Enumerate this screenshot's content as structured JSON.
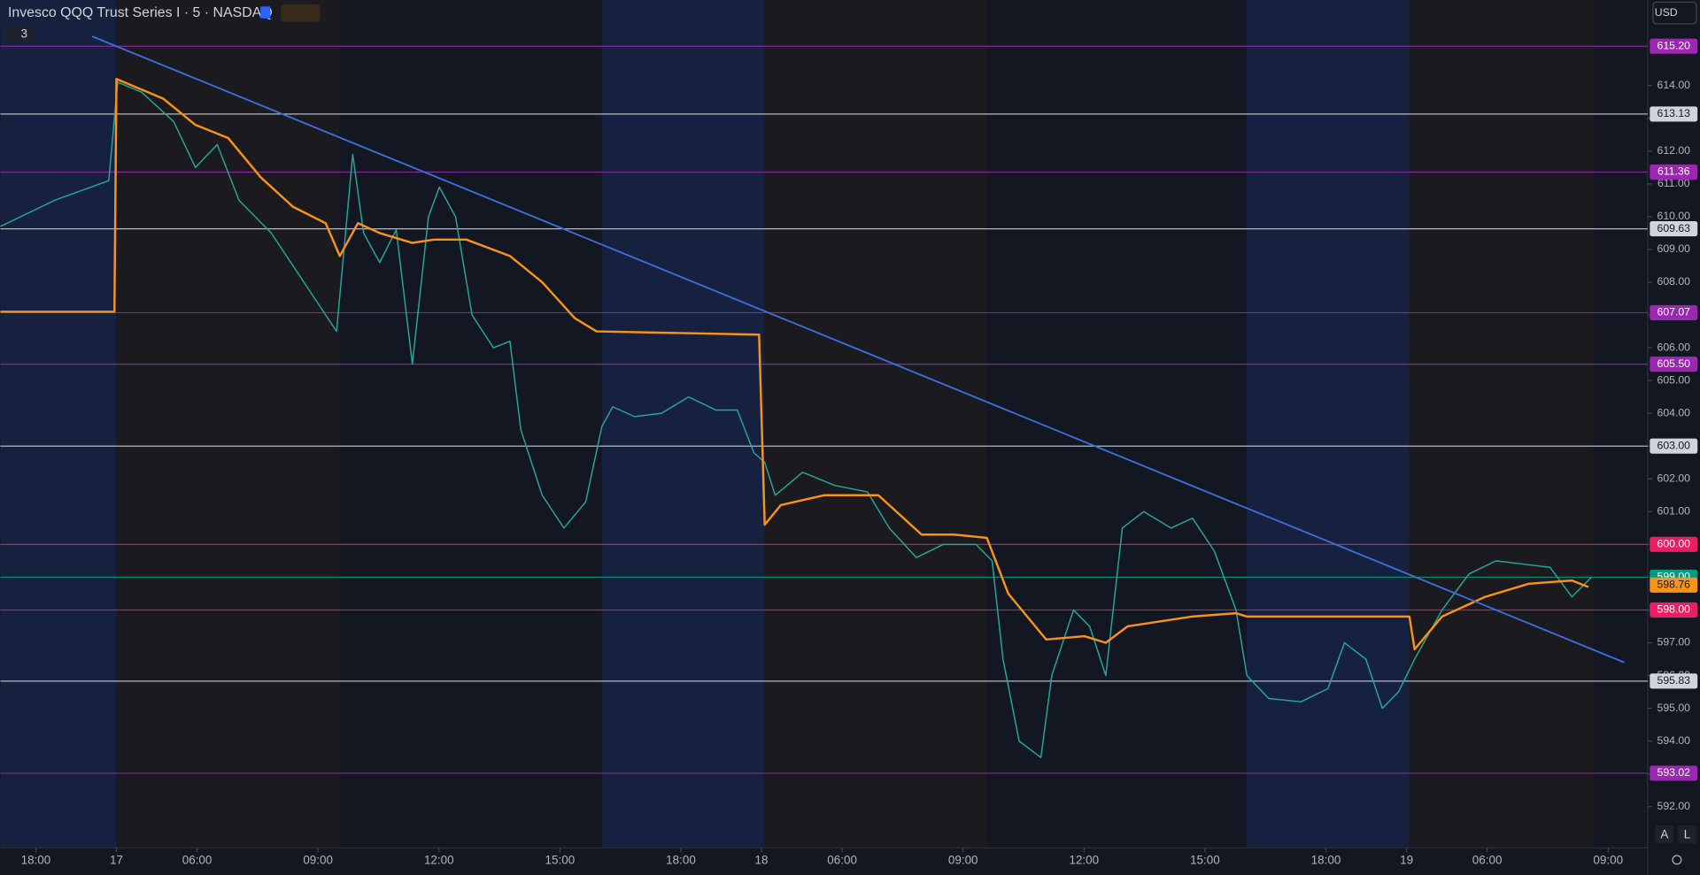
{
  "header": {
    "title": "Invesco QQQ Trust Series I · 5 · NASDAQ",
    "indicators": "3",
    "currency": "USD"
  },
  "buttons": [
    "A",
    "L"
  ],
  "chart_data": {
    "type": "line",
    "xlim": [
      -2.88,
      37.98
    ],
    "ylim": [
      590.74,
      616.61
    ],
    "xticks": [
      {
        "value": -2,
        "label": "18:00"
      },
      {
        "value": 0,
        "label": "17"
      },
      {
        "value": 2,
        "label": "06:00"
      },
      {
        "value": 5,
        "label": "09:00"
      },
      {
        "value": 8,
        "label": "12:00"
      },
      {
        "value": 11,
        "label": "15:00"
      },
      {
        "value": 14,
        "label": "18:00"
      },
      {
        "value": 16,
        "label": "18"
      },
      {
        "value": 18,
        "label": "06:00"
      },
      {
        "value": 21,
        "label": "09:00"
      },
      {
        "value": 24,
        "label": "12:00"
      },
      {
        "value": 27,
        "label": "15:00"
      },
      {
        "value": 30,
        "label": "18:00"
      },
      {
        "value": 32,
        "label": "19"
      },
      {
        "value": 34,
        "label": "06:00"
      },
      {
        "value": 37,
        "label": "09:00"
      }
    ],
    "yticks": [
      {
        "value": 592,
        "label": "592.00"
      },
      {
        "value": 593,
        "label": "593.00"
      },
      {
        "value": 594,
        "label": "594.00"
      },
      {
        "value": 595,
        "label": "595.00"
      },
      {
        "value": 596,
        "label": "596.00"
      },
      {
        "value": 597,
        "label": "597.00"
      },
      {
        "value": 598,
        "label": "598.00"
      },
      {
        "value": 599,
        "label": "599.00"
      },
      {
        "value": 600,
        "label": "600.00"
      },
      {
        "value": 601,
        "label": "601.00"
      },
      {
        "value": 602,
        "label": "602.00"
      },
      {
        "value": 603,
        "label": "603.00"
      },
      {
        "value": 604,
        "label": "604.00"
      },
      {
        "value": 605,
        "label": "605.00"
      },
      {
        "value": 606,
        "label": "606.00"
      },
      {
        "value": 607,
        "label": "607.00"
      },
      {
        "value": 608,
        "label": "608.00"
      },
      {
        "value": 609,
        "label": "609.00"
      },
      {
        "value": 610,
        "label": "610.00"
      },
      {
        "value": 611,
        "label": "611.00"
      },
      {
        "value": 612,
        "label": "612.00"
      },
      {
        "value": 613,
        "label": "613.00"
      },
      {
        "value": 614,
        "label": "614.00"
      }
    ],
    "series": [
      {
        "color": "#26a69a",
        "width": 1.2,
        "x": [
          -2.88,
          -1.53,
          -0.19,
          0.03,
          0.62,
          1.42,
          1.96,
          2.5,
          3.04,
          3.84,
          4.38,
          4.92,
          5.46,
          5.86,
          6.13,
          6.53,
          6.94,
          7.34,
          7.74,
          8.01,
          8.41,
          8.82,
          9.35,
          9.76,
          10.03,
          10.56,
          11.1,
          11.64,
          12.04,
          12.31,
          12.85,
          13.52,
          14.19,
          14.87,
          15.4,
          15.81,
          16.08,
          16.34,
          17.02,
          17.82,
          18.63,
          19.17,
          19.84,
          20.51,
          21.32,
          21.72,
          21.99,
          22.39,
          22.93,
          23.2,
          23.74,
          24.14,
          24.54,
          24.95,
          25.48,
          26.16,
          26.69,
          27.23,
          27.77,
          28.04,
          28.58,
          29.38,
          30.05,
          30.46,
          30.99,
          31.4,
          31.8,
          32.2,
          32.88,
          33.55,
          34.22,
          34.89,
          35.56,
          36.1,
          36.59
        ],
        "values": [
          609.7,
          610.5,
          611.1,
          614.1,
          613.8,
          612.9,
          611.5,
          612.2,
          610.5,
          609.5,
          608.5,
          607.5,
          606.5,
          611.9,
          609.5,
          608.6,
          609.6,
          605.5,
          610,
          610.9,
          610,
          607,
          606,
          606.2,
          603.5,
          601.5,
          600.5,
          601.3,
          603.6,
          604.2,
          603.9,
          604,
          604.5,
          604.1,
          604.1,
          602.8,
          602.5,
          601.5,
          602.2,
          601.8,
          601.6,
          600.5,
          599.6,
          600,
          600,
          599.5,
          596.5,
          594,
          593.5,
          596,
          598,
          597.5,
          596,
          600.5,
          601,
          600.5,
          600.8,
          599.8,
          598,
          596,
          595.3,
          595.2,
          595.6,
          597,
          596.5,
          595,
          595.5,
          596.5,
          598,
          599.1,
          599.5,
          599.4,
          599.3,
          598.4,
          599
        ]
      },
      {
        "color": "#f7931a",
        "width": 2,
        "x": [
          -2.88,
          -0.05,
          0,
          1.16,
          1.96,
          2.77,
          3.58,
          4.38,
          5.19,
          5.54,
          5.99,
          6.53,
          7.34,
          7.88,
          8.68,
          9.76,
          10.56,
          11.37,
          11.91,
          15.94,
          16.08,
          16.48,
          17.55,
          18.9,
          19.97,
          20.78,
          21.59,
          22.12,
          23.06,
          24.01,
          24.54,
          25.08,
          26.69,
          27.77,
          28.04,
          32.07,
          32.2,
          32.88,
          33.95,
          35.03,
          36.1,
          36.51
        ],
        "values": [
          607.1,
          607.1,
          614.2,
          613.6,
          612.8,
          612.4,
          611.2,
          610.3,
          609.8,
          608.8,
          609.8,
          609.5,
          609.2,
          609.3,
          609.3,
          608.8,
          608,
          606.9,
          606.5,
          606.4,
          600.6,
          601.2,
          601.5,
          601.5,
          600.3,
          600.3,
          600.2,
          598.5,
          597.1,
          597.2,
          597,
          597.5,
          597.8,
          597.9,
          597.8,
          597.8,
          596.8,
          597.8,
          598.4,
          598.8,
          598.9,
          598.7
        ]
      },
      {
        "color": "#3d6fe0",
        "width": 1.5,
        "x": [
          -0.6,
          37.4
        ],
        "values": [
          615.5,
          596.4
        ]
      }
    ],
    "levels": [
      {
        "value": 615.2,
        "label": "615.20",
        "color": "#9c27b0",
        "text_color": "#ffffff"
      },
      {
        "value": 613.13,
        "label": "613.13",
        "color": "#d1d4dc",
        "text_color": "#131722"
      },
      {
        "value": 611.36,
        "label": "611.36",
        "color": "#9c27b0",
        "text_color": "#ffffff"
      },
      {
        "value": 609.63,
        "label": "609.63",
        "color": "#d1d4dc",
        "text_color": "#131722"
      },
      {
        "value": 607.07,
        "label": "607.07",
        "color": "#9c27b0",
        "text_color": "#ffffff"
      },
      {
        "value": 605.5,
        "label": "605.50",
        "color": "#9c27b0",
        "text_color": "#ffffff"
      },
      {
        "value": 603,
        "label": "603.00",
        "color": "#d1d4dc",
        "text_color": "#131722"
      },
      {
        "value": 600,
        "label": "600.00",
        "color": "#e91e63",
        "text_color": "#ffffff"
      },
      {
        "value": 599,
        "label": "599.00",
        "color": "#089981",
        "text_color": "#ffffff"
      },
      {
        "value": 598.76,
        "label": "598.76",
        "color": "#f7931a",
        "text_color": "#131722",
        "show_line": false
      },
      {
        "value": 598,
        "label": "598.00",
        "color": "#e91e63",
        "text_color": "#ffffff"
      },
      {
        "value": 595.83,
        "label": "595.83",
        "color": "#d1d4dc",
        "text_color": "#131722"
      },
      {
        "value": 593.02,
        "label": "593.02",
        "color": "#9c27b0",
        "text_color": "#ffffff"
      }
    ]
  }
}
